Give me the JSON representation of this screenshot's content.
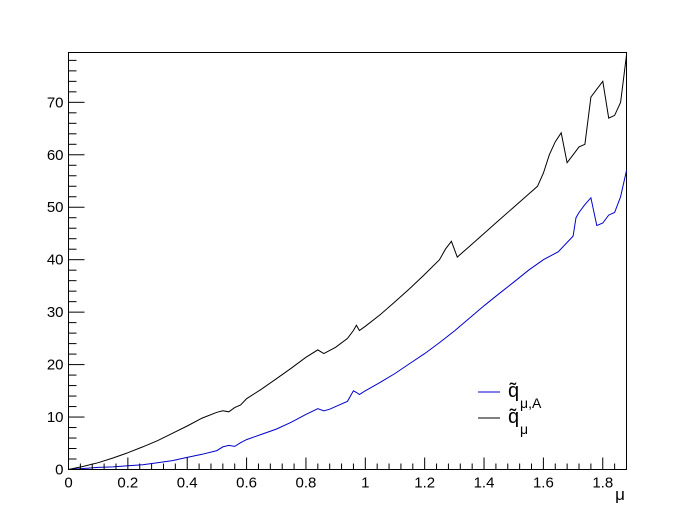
{
  "chart_data": {
    "type": "line",
    "title": "",
    "xlabel": "μ",
    "ylabel": "",
    "xlim": [
      0,
      1.88
    ],
    "ylim": [
      0,
      79.5
    ],
    "grid": false,
    "legend_position": "bottom-right",
    "x_ticks": [
      "0",
      "0.2",
      "0.4",
      "0.6",
      "0.8",
      "1",
      "1.2",
      "1.4",
      "1.6",
      "1.8"
    ],
    "y_ticks": [
      "0",
      "10",
      "20",
      "30",
      "40",
      "50",
      "60",
      "70"
    ],
    "series": [
      {
        "legend": {
          "base": "q̃",
          "sub": "μ,A"
        },
        "color": "#0000cc",
        "x": [
          0,
          0.05,
          0.1,
          0.15,
          0.2,
          0.25,
          0.3,
          0.35,
          0.4,
          0.45,
          0.5,
          0.52,
          0.54,
          0.56,
          0.58,
          0.6,
          0.65,
          0.7,
          0.75,
          0.8,
          0.84,
          0.86,
          0.88,
          0.9,
          0.94,
          0.96,
          0.97,
          0.98,
          1.0,
          1.05,
          1.1,
          1.15,
          1.2,
          1.25,
          1.3,
          1.35,
          1.4,
          1.45,
          1.5,
          1.55,
          1.6,
          1.65,
          1.7,
          1.71,
          1.72,
          1.74,
          1.76,
          1.78,
          1.8,
          1.82,
          1.84,
          1.86,
          1.88
        ],
        "y": [
          0,
          0.2,
          0.4,
          0.5,
          0.7,
          0.9,
          1.3,
          1.7,
          2.3,
          2.9,
          3.6,
          4.3,
          4.6,
          4.4,
          5.1,
          5.7,
          6.7,
          7.7,
          9.0,
          10.5,
          11.6,
          11.2,
          11.5,
          12.0,
          13.0,
          15.0,
          14.7,
          14.3,
          15.0,
          16.6,
          18.3,
          20.2,
          22.1,
          24.2,
          26.4,
          28.8,
          31.2,
          33.5,
          35.7,
          38.0,
          40.0,
          41.5,
          44.5,
          48.0,
          49.0,
          50.5,
          51.8,
          46.5,
          47.0,
          48.5,
          49.0,
          52.0,
          57.0
        ]
      },
      {
        "legend": {
          "base": "q̃",
          "sub": "μ"
        },
        "color": "#000000",
        "x": [
          0,
          0.05,
          0.1,
          0.15,
          0.2,
          0.25,
          0.3,
          0.35,
          0.4,
          0.45,
          0.5,
          0.52,
          0.54,
          0.56,
          0.58,
          0.6,
          0.65,
          0.7,
          0.75,
          0.8,
          0.84,
          0.86,
          0.88,
          0.9,
          0.94,
          0.96,
          0.97,
          0.98,
          1.0,
          1.05,
          1.1,
          1.15,
          1.2,
          1.25,
          1.27,
          1.29,
          1.31,
          1.33,
          1.35,
          1.4,
          1.45,
          1.5,
          1.55,
          1.58,
          1.6,
          1.62,
          1.64,
          1.66,
          1.68,
          1.7,
          1.72,
          1.74,
          1.76,
          1.78,
          1.8,
          1.82,
          1.84,
          1.86,
          1.88
        ],
        "y": [
          0,
          0.6,
          1.3,
          2.2,
          3.2,
          4.3,
          5.5,
          6.9,
          8.3,
          9.8,
          10.9,
          11.2,
          11.0,
          11.8,
          12.3,
          13.5,
          15.3,
          17.3,
          19.3,
          21.4,
          22.8,
          22.1,
          22.7,
          23.3,
          25.0,
          26.5,
          27.5,
          26.5,
          27.3,
          29.5,
          32.0,
          34.5,
          37.2,
          40.0,
          42.0,
          43.5,
          40.5,
          41.5,
          42.5,
          45.0,
          47.5,
          50.0,
          52.5,
          54.0,
          56.5,
          60.0,
          62.5,
          64.2,
          58.5,
          60.0,
          61.5,
          62.0,
          71.0,
          72.5,
          74.0,
          67.0,
          67.5,
          70.0,
          79.0
        ]
      }
    ]
  }
}
